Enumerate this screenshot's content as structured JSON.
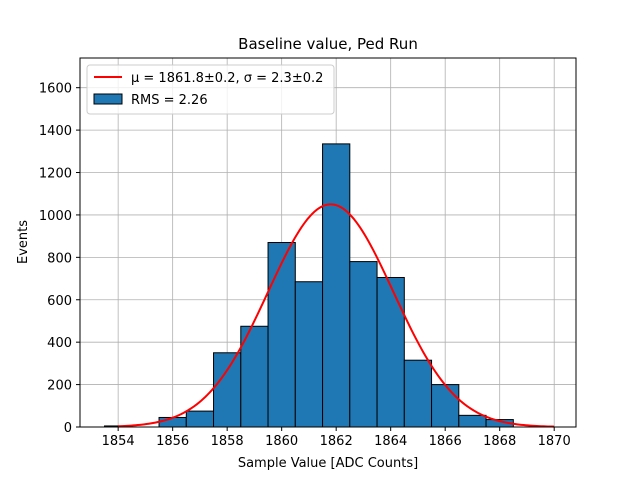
{
  "chart_data": {
    "type": "bar",
    "title": "Baseline value, Ped Run",
    "xlabel": "Sample Value [ADC Counts]",
    "ylabel": "Events",
    "xlim": [
      1852.6,
      1870.8
    ],
    "ylim": [
      0,
      1740
    ],
    "xticks": [
      1854,
      1856,
      1858,
      1860,
      1862,
      1864,
      1866,
      1868,
      1870
    ],
    "yticks": [
      0,
      200,
      400,
      600,
      800,
      1000,
      1200,
      1400,
      1600
    ],
    "grid": true,
    "legend_position": "top-left",
    "bar_color": "#1f77b4",
    "fit_color": "#ff0000",
    "histogram": {
      "name": "RMS = 2.26",
      "bin_edges": [
        1853.5,
        1854.5,
        1855.5,
        1856.5,
        1857.5,
        1858.5,
        1859.5,
        1860.5,
        1861.5,
        1862.5,
        1863.5,
        1864.5,
        1865.5,
        1866.5,
        1867.5,
        1868.5
      ],
      "counts": [
        5,
        0,
        45,
        75,
        350,
        475,
        870,
        685,
        1335,
        780,
        705,
        315,
        200,
        55,
        35
      ]
    },
    "fit": {
      "name": "μ = 1861.8±0.2, σ = 2.3±0.2",
      "mu": 1861.8,
      "sigma": 2.3,
      "amplitude": 1050,
      "x_range": [
        1854,
        1870
      ]
    }
  }
}
